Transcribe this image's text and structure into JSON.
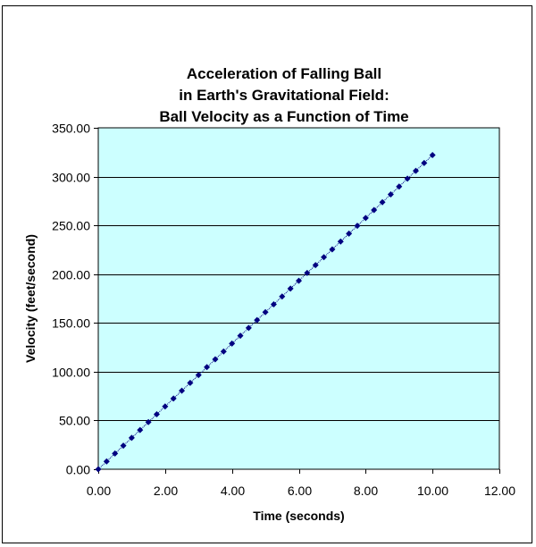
{
  "chart_data": {
    "type": "scatter",
    "title": "Acceleration of Falling Ball in Earth's Gravitational Field: Ball Velocity as a Function of Time",
    "title_lines": [
      "Acceleration of Falling Ball",
      "in Earth's Gravitational Field:",
      "Ball Velocity as a Function of Time"
    ],
    "xlabel": "Time (seconds)",
    "ylabel": "Velocity (feet/second)",
    "xlim": [
      0,
      12
    ],
    "ylim": [
      0,
      350
    ],
    "x_ticks": [
      "0.00",
      "2.00",
      "4.00",
      "6.00",
      "8.00",
      "10.00",
      "12.00"
    ],
    "y_ticks": [
      "0.00",
      "50.00",
      "100.00",
      "150.00",
      "200.00",
      "250.00",
      "300.00",
      "350.00"
    ],
    "grid": "horizontal major gridlines",
    "legend": "none",
    "plot_background": "#CCFFFF",
    "series": [
      {
        "name": "Velocity",
        "marker": "diamond",
        "line": "dotted",
        "color": "#000080",
        "x": [
          0,
          0.25,
          0.5,
          0.75,
          1,
          1.25,
          1.5,
          1.75,
          2,
          2.25,
          2.5,
          2.75,
          3,
          3.25,
          3.5,
          3.75,
          4,
          4.25,
          4.5,
          4.75,
          5,
          5.25,
          5.5,
          5.75,
          6,
          6.25,
          6.5,
          6.75,
          7,
          7.25,
          7.5,
          7.75,
          8,
          8.25,
          8.5,
          8.75,
          9,
          9.25,
          9.5,
          9.75,
          10
        ],
        "values": [
          0,
          8.05,
          16.1,
          24.15,
          32.2,
          40.25,
          48.3,
          56.35,
          64.4,
          72.45,
          80.5,
          88.55,
          96.6,
          104.65,
          112.7,
          120.75,
          128.8,
          136.85,
          144.9,
          152.95,
          161,
          169.05,
          177.1,
          185.15,
          193.2,
          201.25,
          209.3,
          217.35,
          225.4,
          233.45,
          241.5,
          249.55,
          257.6,
          265.65,
          273.7,
          281.75,
          289.8,
          297.85,
          305.9,
          313.95,
          322
        ]
      }
    ]
  }
}
